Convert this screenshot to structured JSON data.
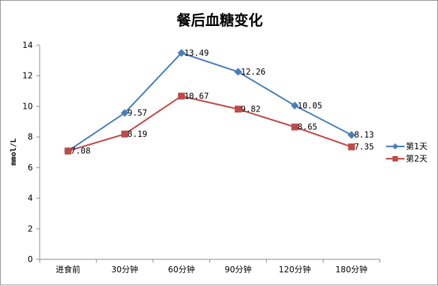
{
  "chart_data": {
    "type": "line",
    "title": "餐后血糖变化",
    "xlabel": "",
    "ylabel": "mmol/L",
    "categories": [
      "进食前",
      "30分钟",
      "60分钟",
      "90分钟",
      "120分钟",
      "180分钟"
    ],
    "ylim": [
      0,
      14
    ],
    "yticks": [
      "0",
      "2",
      "4",
      "6",
      "8",
      "10",
      "12",
      "14"
    ],
    "grid": false,
    "legend_position": "right",
    "series": [
      {
        "name": "第1天",
        "color": "#4a7ebb",
        "marker": "diamond",
        "values": [
          7.08,
          9.57,
          13.49,
          12.26,
          10.05,
          8.13
        ],
        "labels": [
          "",
          "9.57",
          "13.49",
          "12.26",
          "10.05",
          "8.13"
        ]
      },
      {
        "name": "第2天",
        "color": "#be4b48",
        "marker": "square",
        "values": [
          7.08,
          8.19,
          10.67,
          9.82,
          8.65,
          7.35
        ],
        "labels": [
          "7.08",
          "8.19",
          "10.67",
          "9.82",
          "8.65",
          "7.35"
        ]
      }
    ]
  }
}
